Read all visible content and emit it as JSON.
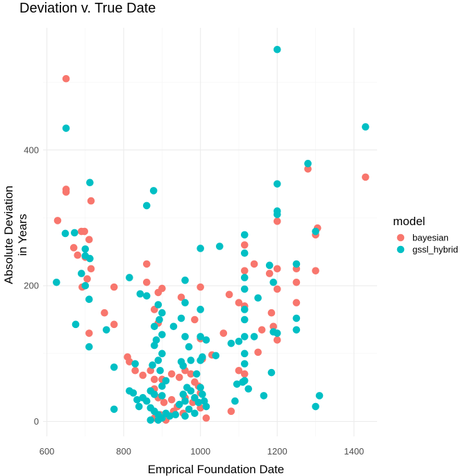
{
  "chart_data": {
    "type": "scatter",
    "title": "Deviation v. True Date",
    "xlabel": "Emprical Foundation Date",
    "ylabel_lines": [
      "Absolute Deviation",
      "in Years"
    ],
    "xlim": [
      590,
      1460
    ],
    "ylim": [
      -22,
      580
    ],
    "x_ticks": [
      600,
      800,
      1000,
      1200,
      1400
    ],
    "y_ticks": [
      0,
      200,
      400
    ],
    "grid": true,
    "legend": {
      "title": "model",
      "position": "right",
      "entries": [
        {
          "name": "bayesian",
          "color": "#F8766D"
        },
        {
          "name": "gssl_hybrid",
          "color": "#00BFC4"
        }
      ]
    },
    "series": [
      {
        "name": "bayesian",
        "color": "#F8766D",
        "points": [
          [
            650,
            505
          ],
          [
            650,
            342
          ],
          [
            650,
            338
          ],
          [
            628,
            296
          ],
          [
            690,
            280
          ],
          [
            698,
            280
          ],
          [
            715,
            325
          ],
          [
            710,
            268
          ],
          [
            670,
            256
          ],
          [
            680,
            245
          ],
          [
            700,
            242
          ],
          [
            715,
            225
          ],
          [
            705,
            210
          ],
          [
            692,
            198
          ],
          [
            775,
            198
          ],
          [
            750,
            160
          ],
          [
            775,
            143
          ],
          [
            710,
            130
          ],
          [
            860,
            232
          ],
          [
            860,
            205
          ],
          [
            890,
            190
          ],
          [
            900,
            196
          ],
          [
            880,
            165
          ],
          [
            890,
            145
          ],
          [
            950,
            183
          ],
          [
            1000,
            198
          ],
          [
            985,
            150
          ],
          [
            1000,
            122
          ],
          [
            1060,
            130
          ],
          [
            1030,
            98
          ],
          [
            810,
            95
          ],
          [
            815,
            88
          ],
          [
            830,
            75
          ],
          [
            850,
            68
          ],
          [
            870,
            75
          ],
          [
            880,
            62
          ],
          [
            900,
            62
          ],
          [
            925,
            70
          ],
          [
            945,
            65
          ],
          [
            960,
            75
          ],
          [
            975,
            70
          ],
          [
            985,
            58
          ],
          [
            995,
            52
          ],
          [
            1005,
            92
          ],
          [
            1000,
            42
          ],
          [
            880,
            48
          ],
          [
            890,
            35
          ],
          [
            905,
            28
          ],
          [
            925,
            32
          ],
          [
            940,
            22
          ],
          [
            960,
            35
          ],
          [
            980,
            28
          ],
          [
            1000,
            20
          ],
          [
            1015,
            5
          ],
          [
            880,
            5
          ],
          [
            895,
            10
          ],
          [
            910,
            2
          ],
          [
            930,
            15
          ],
          [
            955,
            12
          ],
          [
            1075,
            187
          ],
          [
            1100,
            175
          ],
          [
            1115,
            260
          ],
          [
            1115,
            222
          ],
          [
            1115,
            170
          ],
          [
            1140,
            232
          ],
          [
            1180,
            218
          ],
          [
            1185,
            160
          ],
          [
            1190,
            140
          ],
          [
            1200,
            295
          ],
          [
            1200,
            225
          ],
          [
            1200,
            195
          ],
          [
            1200,
            120
          ],
          [
            1160,
            135
          ],
          [
            1150,
            102
          ],
          [
            1115,
            70
          ],
          [
            1100,
            75
          ],
          [
            1080,
            15
          ],
          [
            1250,
            225
          ],
          [
            1250,
            205
          ],
          [
            1250,
            175
          ],
          [
            1280,
            372
          ],
          [
            1300,
            275
          ],
          [
            1305,
            285
          ],
          [
            1300,
            222
          ],
          [
            1430,
            360
          ]
        ]
      },
      {
        "name": "gssl_hybrid",
        "color": "#00BFC4",
        "points": [
          [
            650,
            432
          ],
          [
            625,
            205
          ],
          [
            648,
            277
          ],
          [
            672,
            278
          ],
          [
            712,
            352
          ],
          [
            700,
            254
          ],
          [
            700,
            244
          ],
          [
            712,
            240
          ],
          [
            690,
            218
          ],
          [
            700,
            200
          ],
          [
            710,
            180
          ],
          [
            675,
            143
          ],
          [
            710,
            110
          ],
          [
            755,
            135
          ],
          [
            775,
            80
          ],
          [
            775,
            18
          ],
          [
            815,
            212
          ],
          [
            843,
            188
          ],
          [
            860,
            318
          ],
          [
            878,
            340
          ],
          [
            890,
            172
          ],
          [
            893,
            150
          ],
          [
            880,
            112
          ],
          [
            885,
            120
          ],
          [
            900,
            128
          ],
          [
            900,
            100
          ],
          [
            860,
            185
          ],
          [
            880,
            140
          ],
          [
            900,
            160
          ],
          [
            950,
            152
          ],
          [
            960,
            208
          ],
          [
            960,
            175
          ],
          [
            960,
            125
          ],
          [
            970,
            110
          ],
          [
            1000,
            255
          ],
          [
            1000,
            165
          ],
          [
            1000,
            125
          ],
          [
            1015,
            120
          ],
          [
            1050,
            258
          ],
          [
            1040,
            97
          ],
          [
            1000,
            90
          ],
          [
            1005,
            95
          ],
          [
            990,
            70
          ],
          [
            975,
            90
          ],
          [
            950,
            88
          ],
          [
            955,
            82
          ],
          [
            930,
            140
          ],
          [
            890,
            90
          ],
          [
            875,
            83
          ],
          [
            895,
            75
          ],
          [
            900,
            52
          ],
          [
            910,
            60
          ],
          [
            870,
            45
          ],
          [
            880,
            40
          ],
          [
            900,
            38
          ],
          [
            815,
            45
          ],
          [
            825,
            42
          ],
          [
            835,
            32
          ],
          [
            840,
            22
          ],
          [
            830,
            85
          ],
          [
            850,
            35
          ],
          [
            860,
            30
          ],
          [
            870,
            20
          ],
          [
            880,
            15
          ],
          [
            890,
            10
          ],
          [
            900,
            5
          ],
          [
            910,
            12
          ],
          [
            920,
            8
          ],
          [
            935,
            10
          ],
          [
            945,
            25
          ],
          [
            955,
            40
          ],
          [
            960,
            30
          ],
          [
            965,
            50
          ],
          [
            975,
            45
          ],
          [
            985,
            35
          ],
          [
            995,
            28
          ],
          [
            1000,
            50
          ],
          [
            1005,
            40
          ],
          [
            1010,
            30
          ],
          [
            1015,
            22
          ],
          [
            970,
            18
          ],
          [
            985,
            12
          ],
          [
            960,
            8
          ],
          [
            890,
            2
          ],
          [
            870,
            2
          ],
          [
            1080,
            115
          ],
          [
            1090,
            30
          ],
          [
            1095,
            55
          ],
          [
            1100,
            118
          ],
          [
            1110,
            58
          ],
          [
            1115,
            275
          ],
          [
            1115,
            248
          ],
          [
            1115,
            212
          ],
          [
            1115,
            195
          ],
          [
            1115,
            165
          ],
          [
            1115,
            150
          ],
          [
            1115,
            125
          ],
          [
            1115,
            100
          ],
          [
            1115,
            85
          ],
          [
            1115,
            60
          ],
          [
            1125,
            48
          ],
          [
            1140,
            125
          ],
          [
            1150,
            182
          ],
          [
            1165,
            38
          ],
          [
            1180,
            230
          ],
          [
            1185,
            72
          ],
          [
            1190,
            205
          ],
          [
            1190,
            132
          ],
          [
            1200,
            548
          ],
          [
            1200,
            350
          ],
          [
            1200,
            310
          ],
          [
            1200,
            305
          ],
          [
            1200,
            130
          ],
          [
            1250,
            232
          ],
          [
            1250,
            152
          ],
          [
            1250,
            135
          ],
          [
            1280,
            380
          ],
          [
            1300,
            280
          ],
          [
            1300,
            22
          ],
          [
            1310,
            38
          ],
          [
            1430,
            434
          ]
        ]
      }
    ]
  }
}
